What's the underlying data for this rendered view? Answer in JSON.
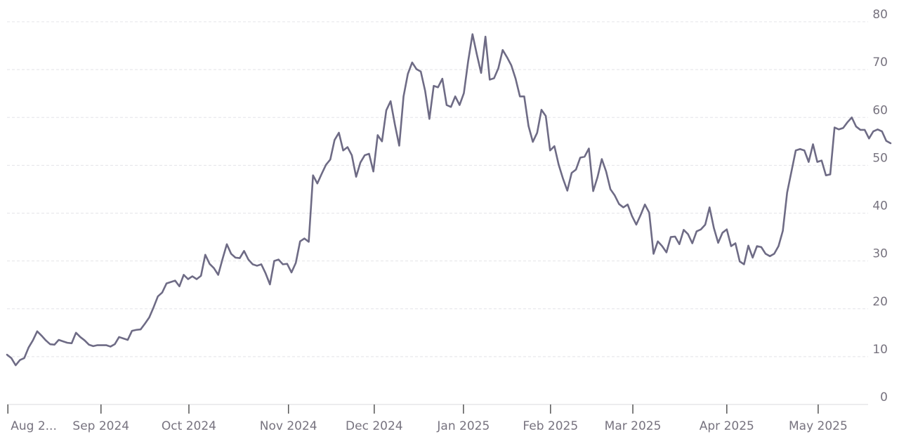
{
  "chart_data": {
    "type": "line",
    "color": "#6e6b85",
    "grid": true,
    "ylim": [
      0,
      80
    ],
    "yticks": [
      0,
      10,
      20,
      30,
      40,
      50,
      60,
      70,
      80
    ],
    "xlim": [
      0,
      205
    ],
    "xticks": [
      {
        "value": 0.2,
        "label": "Aug 2..."
      },
      {
        "value": 21.8,
        "label": "Sep 2024"
      },
      {
        "value": 42.2,
        "label": "Oct 2024"
      },
      {
        "value": 65.3,
        "label": "Nov 2024"
      },
      {
        "value": 85.2,
        "label": "Dec 2024"
      },
      {
        "value": 105.9,
        "label": "Jan 2025"
      },
      {
        "value": 126.1,
        "label": "Feb 2025"
      },
      {
        "value": 145.2,
        "label": "Mar 2025"
      },
      {
        "value": 167,
        "label": "Apr 2025"
      },
      {
        "value": 188.2,
        "label": "May 2025"
      }
    ],
    "values": [
      10.4,
      9.7,
      8.2,
      9.3,
      9.7,
      11.9,
      13.4,
      15.3,
      14.4,
      13.4,
      12.6,
      12.5,
      13.5,
      13.2,
      12.9,
      12.8,
      15.0,
      14.1,
      13.4,
      12.5,
      12.2,
      12.4,
      12.4,
      12.4,
      12.1,
      12.6,
      14.1,
      13.8,
      13.5,
      15.4,
      15.6,
      15.7,
      16.9,
      18.2,
      20.3,
      22.6,
      23.4,
      25.3,
      25.6,
      25.9,
      24.7,
      27.1,
      26.2,
      26.8,
      26.2,
      26.9,
      31.3,
      29.4,
      28.5,
      27.1,
      30.4,
      33.5,
      31.5,
      30.7,
      30.6,
      32.1,
      30.3,
      29.3,
      29.0,
      29.3,
      27.4,
      25.1,
      30.0,
      30.3,
      29.3,
      29.4,
      27.6,
      29.6,
      34.1,
      34.7,
      34.0,
      47.9,
      46.2,
      48.2,
      50.1,
      51.2,
      55.3,
      56.8,
      53.1,
      53.8,
      52.1,
      47.6,
      50.6,
      52.1,
      52.4,
      48.7,
      56.3,
      55.0,
      61.5,
      63.4,
      58.5,
      54.1,
      64.4,
      69.1,
      71.5,
      70.1,
      69.6,
      65.6,
      59.7,
      66.6,
      66.3,
      68.1,
      62.6,
      62.2,
      64.4,
      62.6,
      65.1,
      71.8,
      77.4,
      73.2,
      69.3,
      76.9,
      67.9,
      68.2,
      70.3,
      74.1,
      72.6,
      70.9,
      68.1,
      64.4,
      64.4,
      58.2,
      54.9,
      56.8,
      61.6,
      60.3,
      53.1,
      54.0,
      50.1,
      47.2,
      44.7,
      48.4,
      49.1,
      51.6,
      51.8,
      53.5,
      44.6,
      47.5,
      51.3,
      48.7,
      45.0,
      43.7,
      41.9,
      41.2,
      41.8,
      39.4,
      37.6,
      39.6,
      41.8,
      40.1,
      31.5,
      34.1,
      33.1,
      31.8,
      35.0,
      35.1,
      33.5,
      36.5,
      35.6,
      33.7,
      36.2,
      36.6,
      37.6,
      41.2,
      36.9,
      33.8,
      35.9,
      36.6,
      33.1,
      33.7,
      29.9,
      29.3,
      33.2,
      30.7,
      33.1,
      32.9,
      31.5,
      31.0,
      31.5,
      33.1,
      36.3,
      44.3,
      48.7,
      53.1,
      53.4,
      53.1,
      50.7,
      54.4,
      50.7,
      51.0,
      47.9,
      48.1,
      57.9,
      57.5,
      57.8,
      59.0,
      60.0,
      58.1,
      57.4,
      57.4,
      55.6,
      57.1,
      57.5,
      57.1,
      55.1,
      54.6
    ]
  }
}
